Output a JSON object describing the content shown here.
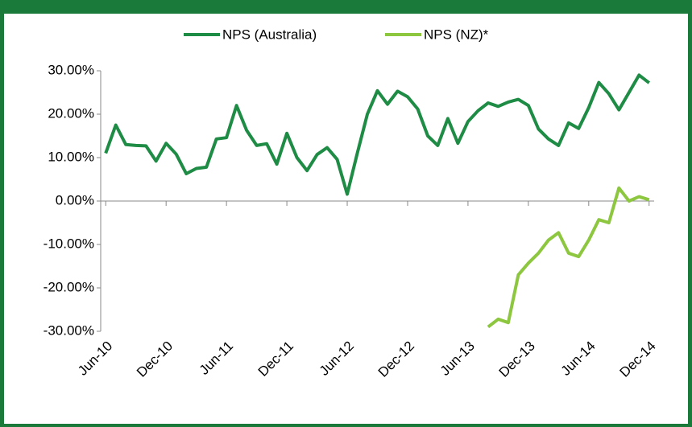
{
  "chart_data": {
    "type": "line",
    "categories": [
      "Jun-10",
      null,
      null,
      null,
      null,
      null,
      "Dec-10",
      null,
      null,
      null,
      null,
      null,
      "Jun-11",
      null,
      null,
      null,
      null,
      null,
      "Dec-11",
      null,
      null,
      null,
      null,
      null,
      "Jun-12",
      null,
      null,
      null,
      null,
      null,
      "Dec-12",
      null,
      null,
      null,
      null,
      null,
      "Jun-13",
      null,
      null,
      null,
      null,
      null,
      "Dec-13",
      null,
      null,
      null,
      null,
      null,
      "Jun-14",
      null,
      null,
      null,
      null,
      null,
      "Dec-14"
    ],
    "series": [
      {
        "name": "NPS (Australia)",
        "color": "#1e8c45",
        "values": [
          11,
          17.5,
          13,
          12.8,
          12.7,
          9.2,
          13.3,
          10.8,
          6.3,
          7.5,
          7.8,
          14.3,
          14.6,
          22,
          16.3,
          12.8,
          13.2,
          8.5,
          15.6,
          10,
          7,
          10.7,
          12.3,
          9.6,
          1.6,
          11,
          20,
          25.4,
          22.3,
          25.3,
          24,
          21.2,
          15,
          12.8,
          19,
          13.3,
          18.3,
          20.8,
          22.6,
          21.8,
          22.8,
          23.4,
          22,
          16.6,
          14.3,
          12.8,
          18,
          16.7,
          21.5,
          27.3,
          24.7,
          21,
          25,
          29,
          27.2
        ]
      },
      {
        "name": "NPS (NZ)*",
        "color": "#8dc63f",
        "values": [
          null,
          null,
          null,
          null,
          null,
          null,
          null,
          null,
          null,
          null,
          null,
          null,
          null,
          null,
          null,
          null,
          null,
          null,
          null,
          null,
          null,
          null,
          null,
          null,
          null,
          null,
          null,
          null,
          null,
          null,
          null,
          null,
          null,
          null,
          null,
          null,
          null,
          null,
          -29,
          -27.2,
          -28,
          -17,
          -14.3,
          -12,
          -9,
          -7.3,
          -12,
          -12.8,
          -9,
          -4.3,
          -5,
          3,
          0,
          1,
          0.3
        ]
      }
    ],
    "ylim": [
      -30,
      30
    ],
    "yticks": [
      {
        "value": 30,
        "label": "30.00%"
      },
      {
        "value": 20,
        "label": "20.00%"
      },
      {
        "value": 10,
        "label": "10.00%"
      },
      {
        "value": 0,
        "label": "0.00%"
      },
      {
        "value": -10,
        "label": "-10.00%"
      },
      {
        "value": -20,
        "label": "-20.00%"
      },
      {
        "value": -30,
        "label": "-30.00%"
      }
    ],
    "grid": false,
    "legend": "top"
  }
}
